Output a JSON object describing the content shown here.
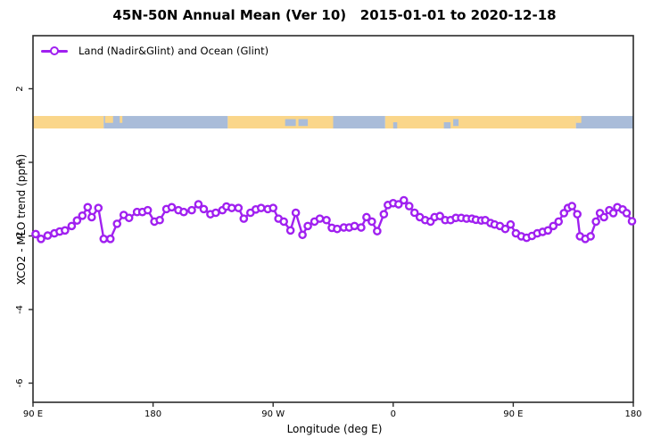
{
  "page": {
    "title": "45N-50N Annual Mean (Ver 10)   2015-01-01 to 2020-12-18"
  },
  "chart_data": {
    "type": "line",
    "title": "45N-50N Annual Mean (Ver 10)   2015-01-01 to 2020-12-18",
    "xlabel": "Longitude (deg E)",
    "ylabel": "XCO2 - MLO trend (ppm)",
    "legend_position": "top-left",
    "grid": false,
    "xlim": [
      90,
      540
    ],
    "ylim": [
      -6.5,
      3.4
    ],
    "x_ticks": [
      {
        "value": 90,
        "label": "90 E"
      },
      {
        "value": 180,
        "label": "180"
      },
      {
        "value": 270,
        "label": "90 W"
      },
      {
        "value": 360,
        "label": "0"
      },
      {
        "value": 450,
        "label": "90 E"
      },
      {
        "value": 540,
        "label": "180"
      }
    ],
    "y_ticks": [
      {
        "value": 2,
        "label": "2"
      },
      {
        "value": 0,
        "label": "0"
      },
      {
        "value": -2,
        "label": "-2"
      },
      {
        "value": -4,
        "label": "-4"
      },
      {
        "value": -6,
        "label": "-6"
      }
    ],
    "series": [
      {
        "name": "Land (Nadir&Glint) and Ocean (Glint)",
        "color": "#A020F0",
        "marker": "open-circle",
        "points": [
          [
            92,
            -1.95
          ],
          [
            96,
            -2.08
          ],
          [
            101,
            -1.99
          ],
          [
            106,
            -1.93
          ],
          [
            110,
            -1.88
          ],
          [
            114,
            -1.85
          ],
          [
            119,
            -1.73
          ],
          [
            123,
            -1.58
          ],
          [
            127,
            -1.45
          ],
          [
            131,
            -1.22
          ],
          [
            134,
            -1.49
          ],
          [
            139,
            -1.24
          ],
          [
            143,
            -2.08
          ],
          [
            148,
            -2.08
          ],
          [
            153,
            -1.67
          ],
          [
            158,
            -1.43
          ],
          [
            162,
            -1.51
          ],
          [
            168,
            -1.35
          ],
          [
            172,
            -1.35
          ],
          [
            176,
            -1.3
          ],
          [
            181,
            -1.61
          ],
          [
            185,
            -1.57
          ],
          [
            190,
            -1.27
          ],
          [
            194,
            -1.22
          ],
          [
            199,
            -1.3
          ],
          [
            203,
            -1.35
          ],
          [
            209,
            -1.3
          ],
          [
            214,
            -1.14
          ],
          [
            218,
            -1.27
          ],
          [
            223,
            -1.41
          ],
          [
            227,
            -1.37
          ],
          [
            232,
            -1.3
          ],
          [
            235,
            -1.2
          ],
          [
            239,
            -1.24
          ],
          [
            244,
            -1.24
          ],
          [
            248,
            -1.53
          ],
          [
            253,
            -1.37
          ],
          [
            257,
            -1.28
          ],
          [
            261,
            -1.24
          ],
          [
            266,
            -1.27
          ],
          [
            270,
            -1.24
          ],
          [
            274,
            -1.53
          ],
          [
            278,
            -1.61
          ],
          [
            283,
            -1.85
          ],
          [
            287,
            -1.37
          ],
          [
            292,
            -1.97
          ],
          [
            296,
            -1.73
          ],
          [
            301,
            -1.61
          ],
          [
            305,
            -1.53
          ],
          [
            310,
            -1.57
          ],
          [
            314,
            -1.78
          ],
          [
            318,
            -1.81
          ],
          [
            323,
            -1.77
          ],
          [
            327,
            -1.77
          ],
          [
            331,
            -1.73
          ],
          [
            336,
            -1.77
          ],
          [
            340,
            -1.49
          ],
          [
            344,
            -1.61
          ],
          [
            348,
            -1.87
          ],
          [
            353,
            -1.41
          ],
          [
            356,
            -1.16
          ],
          [
            360,
            -1.11
          ],
          [
            364,
            -1.14
          ],
          [
            368,
            -1.03
          ],
          [
            372,
            -1.19
          ],
          [
            376,
            -1.37
          ],
          [
            380,
            -1.49
          ],
          [
            384,
            -1.57
          ],
          [
            388,
            -1.61
          ],
          [
            391,
            -1.49
          ],
          [
            395,
            -1.46
          ],
          [
            399,
            -1.57
          ],
          [
            403,
            -1.57
          ],
          [
            407,
            -1.51
          ],
          [
            411,
            -1.51
          ],
          [
            415,
            -1.53
          ],
          [
            419,
            -1.53
          ],
          [
            422,
            -1.56
          ],
          [
            426,
            -1.58
          ],
          [
            429,
            -1.57
          ],
          [
            433,
            -1.65
          ],
          [
            436,
            -1.69
          ],
          [
            440,
            -1.73
          ],
          [
            444,
            -1.81
          ],
          [
            448,
            -1.69
          ],
          [
            452,
            -1.93
          ],
          [
            456,
            -2.01
          ],
          [
            460,
            -2.05
          ],
          [
            464,
            -2.0
          ],
          [
            468,
            -1.93
          ],
          [
            472,
            -1.89
          ],
          [
            476,
            -1.85
          ],
          [
            480,
            -1.73
          ],
          [
            484,
            -1.61
          ],
          [
            488,
            -1.38
          ],
          [
            491,
            -1.24
          ],
          [
            494,
            -1.19
          ],
          [
            498,
            -1.41
          ],
          [
            500,
            -2.01
          ],
          [
            504,
            -2.08
          ],
          [
            508,
            -2.01
          ],
          [
            512,
            -1.61
          ],
          [
            515,
            -1.38
          ],
          [
            518,
            -1.49
          ],
          [
            522,
            -1.3
          ],
          [
            525,
            -1.38
          ],
          [
            528,
            -1.22
          ],
          [
            532,
            -1.28
          ],
          [
            535,
            -1.38
          ],
          [
            539,
            -1.6
          ]
        ]
      }
    ],
    "map_band": {
      "description": "45N-50N latitude strip: land/ocean by longitude",
      "y_range": [
        0.92,
        1.26
      ],
      "land_color": "#FAD68A",
      "ocean_color": "#A9BCD9",
      "segments": [
        {
          "surface": "land",
          "lon": [
            90,
            143
          ]
        },
        {
          "surface": "ocean",
          "lon": [
            143,
            236
          ]
        },
        {
          "surface": "land",
          "lon": [
            236,
            315
          ]
        },
        {
          "surface": "ocean",
          "lon": [
            315,
            354
          ]
        },
        {
          "surface": "land",
          "lon": [
            354,
            497
          ]
        },
        {
          "surface": "ocean",
          "lon": [
            497,
            540
          ]
        }
      ],
      "features": [
        {
          "surface": "land",
          "lon": [
            144,
            150
          ],
          "part": "top"
        },
        {
          "surface": "land",
          "lon": [
            155,
            157
          ],
          "part": "top"
        },
        {
          "surface": "ocean",
          "lon": [
            279,
            287
          ],
          "part": "middle"
        },
        {
          "surface": "ocean",
          "lon": [
            289,
            296
          ],
          "part": "middle"
        },
        {
          "surface": "ocean",
          "lon": [
            360,
            363
          ],
          "part": "bottom"
        },
        {
          "surface": "ocean",
          "lon": [
            398,
            403
          ],
          "part": "bottom"
        },
        {
          "surface": "ocean",
          "lon": [
            405,
            409
          ],
          "part": "middle"
        },
        {
          "surface": "land",
          "lon": [
            497,
            501
          ],
          "part": "top"
        }
      ]
    }
  },
  "legend": {
    "label": "Land (Nadir&Glint) and Ocean (Glint)"
  },
  "colors": {
    "series": "#A020F0",
    "land": "#FAD68A",
    "ocean": "#A9BCD9",
    "axis": "#2b2b2b"
  }
}
